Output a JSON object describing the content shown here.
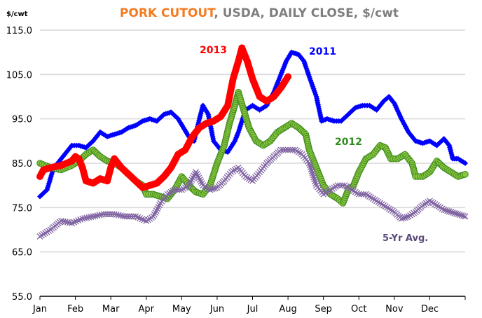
{
  "chart_data": {
    "type": "line",
    "title_highlight": "PORK CUTOUT",
    "title_rest": ", USDA, DAILY CLOSE, $/cwt",
    "ylabel": "$/cwt",
    "xlabel": "",
    "ylim": [
      55,
      115
    ],
    "yticks": [
      "115.0",
      "105.0",
      "95.0",
      "85.0",
      "75.0",
      "65.0",
      "55.0"
    ],
    "ytick_values": [
      115,
      105,
      95,
      85,
      75,
      65,
      55
    ],
    "categories": [
      "Jan",
      "Feb",
      "Mar",
      "Apr",
      "May",
      "Jun",
      "Jul",
      "Aug",
      "Sep",
      "Oct",
      "Nov",
      "Dec"
    ],
    "xlim": [
      0,
      12
    ],
    "grid": true,
    "series": [
      {
        "name": "2011",
        "color": "#0000ff",
        "marker": "diamond",
        "x": [
          0,
          0.2,
          0.35,
          0.5,
          0.7,
          0.9,
          1.1,
          1.3,
          1.5,
          1.7,
          1.9,
          2.1,
          2.3,
          2.5,
          2.7,
          2.9,
          3.1,
          3.3,
          3.5,
          3.7,
          3.9,
          4.05,
          4.2,
          4.35,
          4.5,
          4.6,
          4.75,
          4.9,
          5.1,
          5.3,
          5.5,
          5.6,
          5.8,
          6.0,
          6.2,
          6.4,
          6.6,
          6.8,
          6.95,
          7.1,
          7.3,
          7.45,
          7.6,
          7.8,
          7.95,
          8.1,
          8.3,
          8.5,
          8.7,
          8.9,
          9.1,
          9.3,
          9.5,
          9.7,
          9.85,
          10.0,
          10.2,
          10.4,
          10.6,
          10.8,
          11.0,
          11.2,
          11.4,
          11.55,
          11.65,
          11.8,
          12.0
        ],
        "y": [
          77.5,
          79,
          83,
          85,
          87,
          89,
          89,
          88.5,
          90,
          92,
          91,
          91.5,
          92,
          93,
          93.5,
          94.5,
          95,
          94.5,
          96,
          96.5,
          95,
          93,
          91,
          90,
          95,
          98,
          96,
          90,
          88,
          87.5,
          90,
          92,
          97,
          98,
          97,
          98,
          101,
          105,
          108,
          110,
          109.5,
          108,
          104.5,
          100,
          94.5,
          95,
          94.5,
          94.5,
          96,
          97.5,
          98,
          98,
          97,
          99,
          100,
          98.5,
          95,
          92,
          90,
          89.5,
          90,
          89,
          90.5,
          89,
          86,
          86,
          85
        ]
      },
      {
        "name": "2012",
        "color": "#8cc63f",
        "marker": "circle",
        "x": [
          0,
          0.3,
          0.6,
          0.9,
          1.1,
          1.3,
          1.5,
          1.7,
          1.9,
          2.1,
          2.3,
          2.5,
          2.7,
          2.9,
          3.0,
          3.2,
          3.4,
          3.6,
          3.8,
          4.0,
          4.2,
          4.4,
          4.6,
          4.8,
          5.0,
          5.2,
          5.35,
          5.5,
          5.6,
          5.75,
          5.9,
          6.1,
          6.3,
          6.5,
          6.7,
          6.9,
          7.1,
          7.3,
          7.5,
          7.6,
          7.8,
          8.0,
          8.2,
          8.4,
          8.55,
          8.7,
          8.85,
          9.0,
          9.2,
          9.4,
          9.6,
          9.75,
          9.9,
          10.1,
          10.3,
          10.5,
          10.6,
          10.8,
          11.0,
          11.2,
          11.4,
          11.6,
          11.8,
          12.0
        ],
        "y": [
          85,
          84,
          83.5,
          84.5,
          85.5,
          87,
          88,
          86.5,
          85.5,
          85,
          84,
          82.5,
          81,
          80,
          78,
          78,
          77.5,
          77,
          79,
          82,
          80,
          78.5,
          78,
          80,
          85,
          89,
          94,
          98,
          101,
          97,
          93,
          90,
          89,
          90,
          92,
          93,
          94,
          93,
          91.5,
          88,
          84,
          80,
          78,
          77,
          76,
          79,
          80,
          83,
          86,
          87,
          89,
          88.5,
          86,
          86,
          87,
          85,
          82,
          82,
          83,
          85.5,
          84,
          83,
          82,
          82.5
        ]
      },
      {
        "name": "2013",
        "color": "#ff0000",
        "marker": "circle",
        "x": [
          0,
          0.1,
          0.3,
          0.6,
          0.9,
          1.0,
          1.1,
          1.2,
          1.3,
          1.5,
          1.7,
          1.9,
          2.0,
          2.1,
          2.3,
          2.5,
          2.7,
          2.9,
          3.1,
          3.3,
          3.5,
          3.7,
          3.9,
          4.1,
          4.3,
          4.5,
          4.7,
          4.9,
          5.1,
          5.3,
          5.45,
          5.6,
          5.7,
          5.85,
          6.0,
          6.2,
          6.4,
          6.6,
          6.8,
          7.0
        ],
        "y": [
          82,
          83.5,
          84,
          84.5,
          85.5,
          86.5,
          86,
          84,
          81,
          80.5,
          81.5,
          81,
          84,
          86,
          84,
          82.5,
          81,
          79.5,
          80,
          80.5,
          82,
          84,
          87,
          88,
          91,
          93,
          94,
          94.5,
          95.5,
          98,
          104,
          108,
          111,
          108,
          104,
          100,
          99,
          100,
          102,
          104.5
        ]
      },
      {
        "name": "5-Yr Avg.",
        "color": "#8064a2",
        "marker": "cross",
        "x": [
          0,
          0.3,
          0.6,
          0.9,
          1.2,
          1.5,
          1.8,
          2.1,
          2.4,
          2.7,
          3.0,
          3.2,
          3.4,
          3.6,
          3.8,
          4.0,
          4.2,
          4.4,
          4.6,
          4.8,
          5.0,
          5.2,
          5.4,
          5.6,
          5.8,
          6.0,
          6.2,
          6.4,
          6.6,
          6.8,
          7.0,
          7.2,
          7.4,
          7.6,
          7.8,
          8.0,
          8.2,
          8.4,
          8.6,
          8.8,
          9.0,
          9.2,
          9.4,
          9.6,
          9.8,
          10.0,
          10.2,
          10.4,
          10.6,
          10.8,
          11.0,
          11.2,
          11.4,
          11.6,
          11.8,
          12.0
        ],
        "y": [
          68.5,
          70,
          72,
          71.5,
          72.5,
          73,
          73.5,
          73.5,
          73,
          73,
          72,
          73,
          76,
          78,
          79,
          79,
          80,
          83,
          80,
          79,
          79.5,
          81,
          83,
          84,
          82,
          81,
          83,
          85,
          86.5,
          88,
          88,
          88,
          87,
          85,
          80,
          78,
          79,
          80,
          80,
          79,
          78,
          78,
          77,
          76,
          75,
          74,
          72.5,
          73,
          74,
          75.5,
          76.5,
          75.5,
          74.5,
          74,
          73.5,
          73
        ]
      }
    ]
  }
}
